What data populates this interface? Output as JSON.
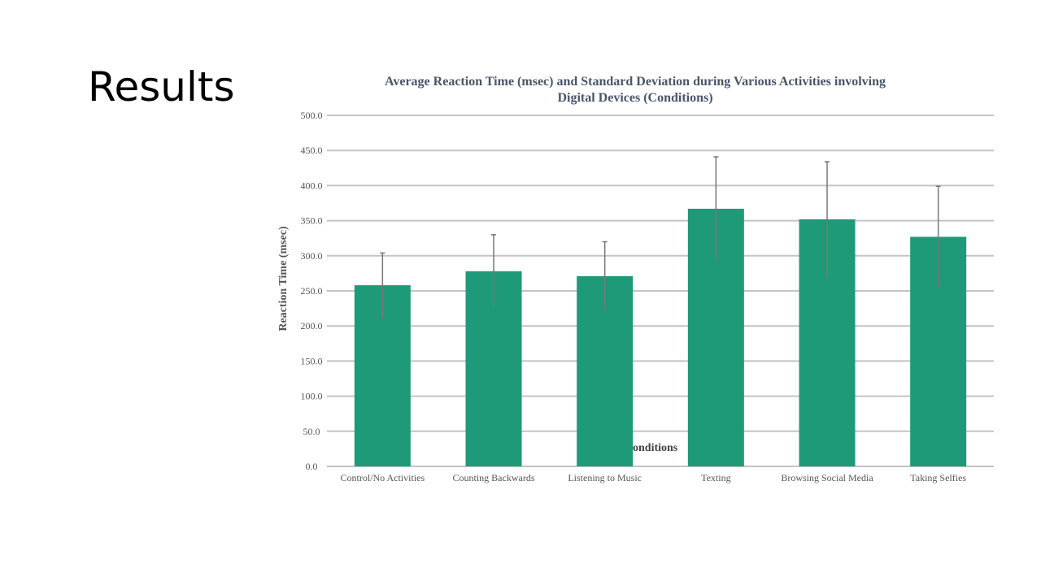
{
  "slide": {
    "title": "Results"
  },
  "chart_data": {
    "type": "bar",
    "title_lines": [
      "Average Reaction Time (msec) and Standard Deviation during Various Activities involving",
      "Digital Devices (Conditions)"
    ],
    "xlabel": "onditions",
    "ylabel": "Reaction Time (msec)",
    "ylim": [
      0,
      500
    ],
    "yticks": [
      "0.0",
      "50.0",
      "100.0",
      "150.0",
      "200.0",
      "250.0",
      "300.0",
      "350.0",
      "400.0",
      "450.0",
      "500.0"
    ],
    "grid": true,
    "categories": [
      "Control/No Activities",
      "Counting Backwards",
      "Listening to Music",
      "Texting",
      "Browsing Social Media",
      "Taking Selfies"
    ],
    "values": [
      258,
      278,
      271,
      367,
      352,
      327
    ],
    "std_dev": [
      46,
      52,
      49,
      74,
      82,
      72
    ],
    "colors": {
      "bar": "#1f9a78",
      "error": "#777777",
      "grid": "#c4c4c4"
    }
  }
}
